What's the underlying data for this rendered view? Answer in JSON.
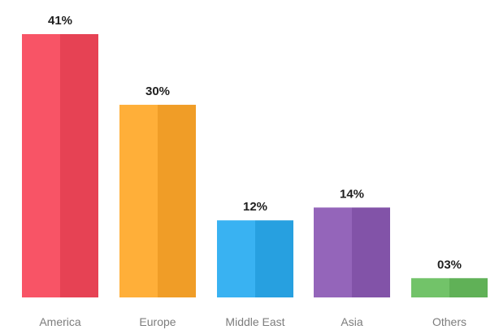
{
  "chart_data": {
    "type": "bar",
    "categories": [
      "America",
      "Europe",
      "Middle East",
      "Asia",
      "Others"
    ],
    "values": [
      41,
      30,
      12,
      14,
      3
    ],
    "value_labels": [
      "41%",
      "30%",
      "12%",
      "14%",
      "03%"
    ],
    "colors": [
      "#ee4a5c",
      "#f8a52f",
      "#2fa8e8",
      "#8a5bb0",
      "#68b95f"
    ],
    "title": "",
    "xlabel": "",
    "ylabel": "",
    "ylim": [
      0,
      41
    ],
    "grid": false,
    "legend": "none"
  }
}
